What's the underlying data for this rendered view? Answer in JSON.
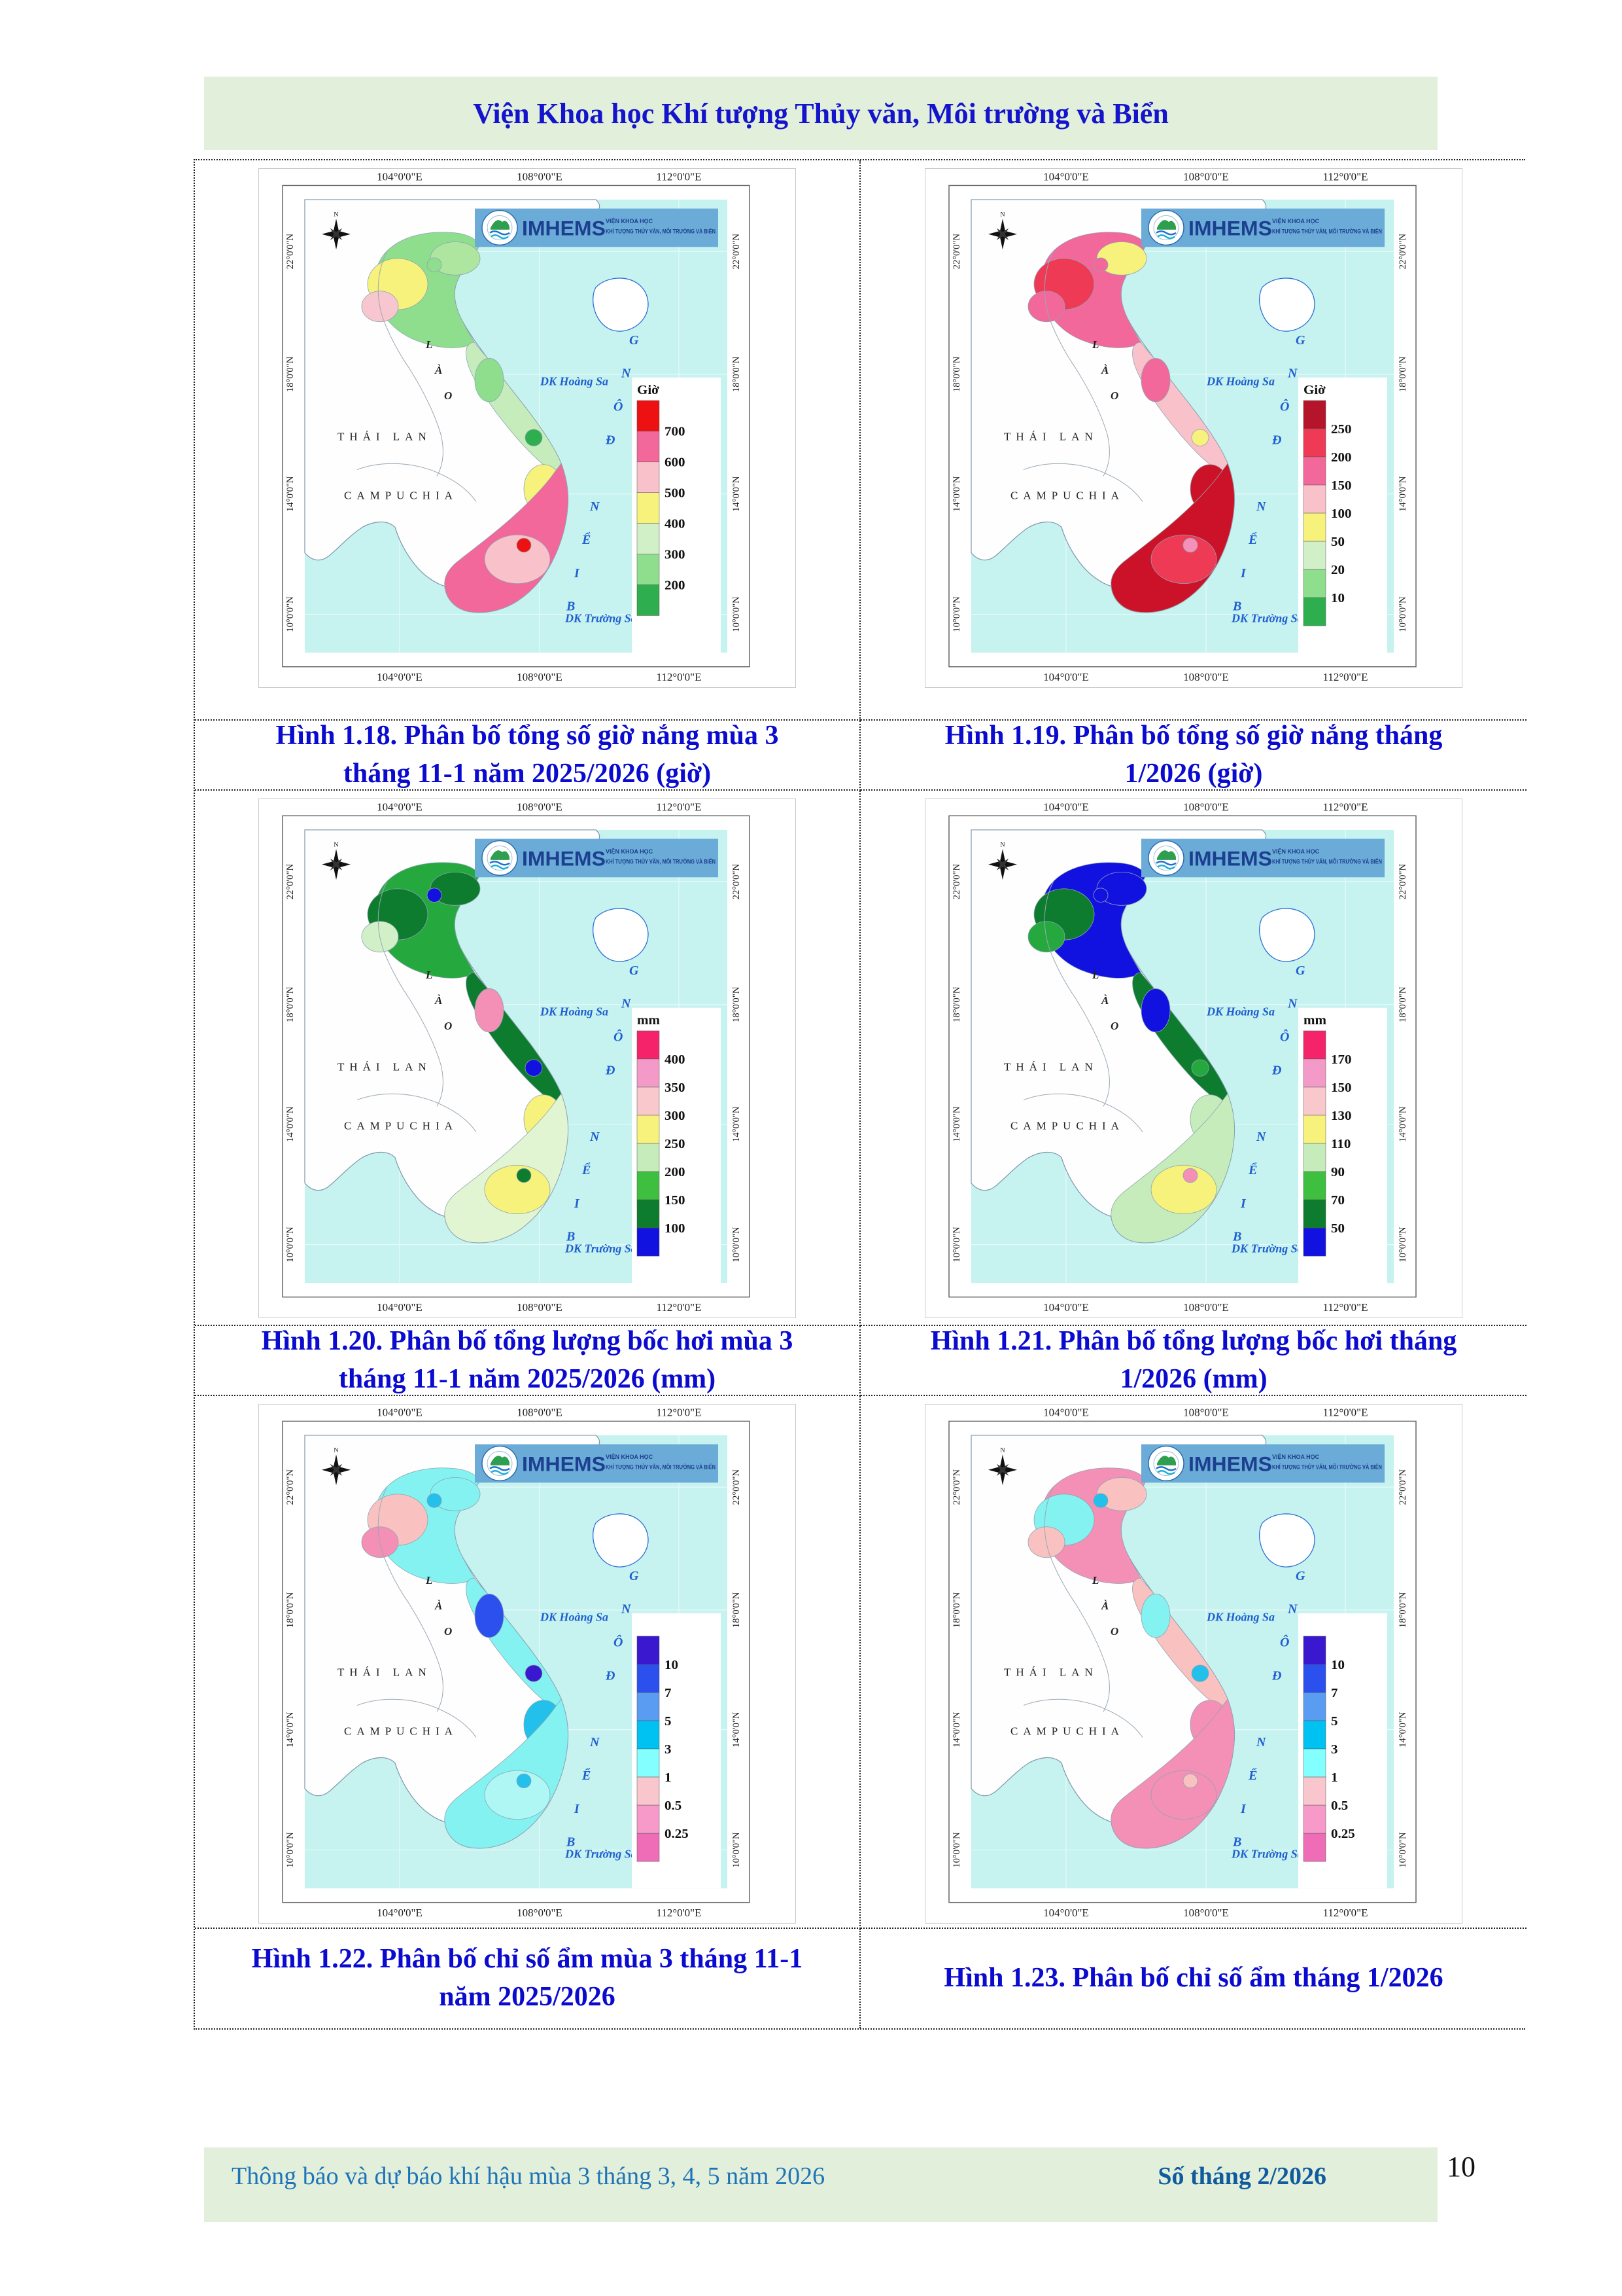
{
  "header": {
    "title": "Viện Khoa học Khí tượng Thủy văn, Môi trường và Biển"
  },
  "banner": {
    "acronym": "IMHEMS",
    "line1": "VIỆN KHOA HỌC",
    "line2": "KHÍ TƯỢNG THỦY VĂN, MÔI TRƯỜNG VÀ BIỂN",
    "bg": "#6aabd7"
  },
  "map_common": {
    "lon_labels": [
      "104°0'0\"E",
      "108°0'0\"E",
      "112°0'0\"E"
    ],
    "lat_labels": [
      "22°0'0\"N",
      "18°0'0\"N",
      "14°0'0\"N",
      "10°0'0\"N"
    ],
    "countries": {
      "laos": "LÀO",
      "thailand": "THÁI LAN",
      "cambodia": "CAMPUCHIA"
    },
    "sea_labels": {
      "hoang_sa": "DK Hoàng Sa",
      "truong_sa": "DK Trường Sa",
      "bien_dong": "BIỂN ĐÔNG"
    },
    "compass_n": "N",
    "sea_color": "#c6f2f0"
  },
  "figures": [
    {
      "caption": "Hình 1.18. Phân bố tổng số giờ nắng mùa 3 tháng 11-1 năm 2025/2026 (giờ)",
      "legend": {
        "title": "Giờ",
        "labels": [
          "700",
          "600",
          "500",
          "400",
          "300",
          "200"
        ],
        "colors": [
          "#ee1111",
          "#f2689a",
          "#f9c2ca",
          "#f6f27c",
          "#d2f0c8",
          "#8ede8e",
          "#2fae4f"
        ]
      },
      "map_colors": {
        "n1": "#8ede8e",
        "n2": "#f6f27c",
        "n3": "#f7c6ce",
        "n4": "#aee6a0",
        "nspot": "#8ede8e",
        "c1": "#c5ecba",
        "c2": "#8ede8e",
        "cspot": "#2fae4f",
        "h1": "#f6f27c",
        "s1": "#f2689a",
        "s2": "#f9c2ca",
        "sspot": "#ee1111"
      }
    },
    {
      "caption": "Hình 1.19. Phân bố tổng số giờ nắng tháng 1/2026 (giờ)",
      "legend": {
        "title": "Giờ",
        "labels": [
          "250",
          "200",
          "150",
          "100",
          "50",
          "20",
          "10"
        ],
        "colors": [
          "#b5152b",
          "#ee3a55",
          "#f2689a",
          "#f9c2ca",
          "#f6f27c",
          "#d2f0c8",
          "#8ede8e",
          "#2fae4f"
        ]
      },
      "map_colors": {
        "n1": "#f2689a",
        "n2": "#ee3a55",
        "n3": "#f2689a",
        "n4": "#f6f27c",
        "nspot": "#f2689a",
        "c1": "#f9c2ca",
        "c2": "#f2689a",
        "cspot": "#f6f27c",
        "h1": "#cc1228",
        "s1": "#cc1228",
        "s2": "#ee3a55",
        "sspot": "#f591b8"
      }
    },
    {
      "caption": "Hình 1.20. Phân bố tổng lượng bốc hơi mùa 3 tháng 11-1 năm 2025/2026 (mm)",
      "legend": {
        "title": "mm",
        "labels": [
          "400",
          "350",
          "300",
          "250",
          "200",
          "150",
          "100"
        ],
        "colors": [
          "#f5246a",
          "#f49ac8",
          "#f9c8cc",
          "#f6f27c",
          "#c5ecba",
          "#3fbf3f",
          "#0d7c2e",
          "#1212e0"
        ]
      },
      "map_colors": {
        "n1": "#25a93f",
        "n2": "#0d7c2e",
        "n3": "#d2f0c8",
        "n4": "#0d7c2e",
        "nspot": "#1212e0",
        "c1": "#0d7c2e",
        "c2": "#f48fb5",
        "cspot": "#1212e0",
        "h1": "#f6f27c",
        "s1": "#e2f5d2",
        "s2": "#f6f27c",
        "sspot": "#0d7c2e"
      }
    },
    {
      "caption": "Hình 1.21. Phân bố tổng lượng bốc hơi tháng 1/2026 (mm)",
      "legend": {
        "title": "mm",
        "labels": [
          "170",
          "150",
          "130",
          "110",
          "90",
          "70",
          "50"
        ],
        "colors": [
          "#f5246a",
          "#f49ac8",
          "#f9c8cc",
          "#f6f27c",
          "#c5ecba",
          "#3fbf3f",
          "#0d7c2e",
          "#1212e0"
        ]
      },
      "map_colors": {
        "n1": "#1212e0",
        "n2": "#0d7c2e",
        "n3": "#25a93f",
        "n4": "#1212e0",
        "nspot": "#1212e0",
        "c1": "#0d7c2e",
        "c2": "#1212e0",
        "cspot": "#25a93f",
        "h1": "#c5ecba",
        "s1": "#c5ecba",
        "s2": "#f6f27c",
        "sspot": "#f48fb5"
      }
    },
    {
      "caption": "Hình 1.22. Phân bố chỉ số ẩm mùa 3 tháng 11-1 năm 2025/2026",
      "legend": {
        "title": "",
        "labels": [
          "10",
          "7",
          "5",
          "3",
          "1",
          "0.5",
          "0.25"
        ],
        "colors": [
          "#3918cf",
          "#2b50ee",
          "#5a9cf2",
          "#00c2f2",
          "#84ffff",
          "#f9c6cd",
          "#f79ac9",
          "#ef6cb7"
        ]
      },
      "map_colors": {
        "n1": "#84f2f0",
        "n2": "#f9c2c0",
        "n3": "#f48fb5",
        "n4": "#84f2f0",
        "nspot": "#22c0ea",
        "c1": "#84f2f0",
        "c2": "#2b50ee",
        "cspot": "#3918cf",
        "h1": "#22c0ea",
        "s1": "#84f2f0",
        "s2": "#aef7f5",
        "sspot": "#22c0ea"
      }
    },
    {
      "caption": "Hình 1.23. Phân bố chỉ số ẩm tháng 1/2026",
      "legend": {
        "title": "",
        "labels": [
          "10",
          "7",
          "5",
          "3",
          "1",
          "0.5",
          "0.25"
        ],
        "colors": [
          "#3918cf",
          "#2b50ee",
          "#5a9cf2",
          "#00c2f2",
          "#84ffff",
          "#f9c6cd",
          "#f79ac9",
          "#ef6cb7"
        ]
      },
      "map_colors": {
        "n1": "#f48fb5",
        "n2": "#84f2f0",
        "n3": "#f9c2c0",
        "n4": "#f9c2c0",
        "nspot": "#22c0ea",
        "c1": "#f9c2c0",
        "c2": "#84f2f0",
        "cspot": "#22c0ea",
        "h1": "#f48fb5",
        "s1": "#f48fb5",
        "s2": "#f48fb5",
        "sspot": "#f9c2c0"
      }
    }
  ],
  "footer": {
    "left": "Thông báo và dự báo khí hậu mùa 3 tháng 3, 4, 5 năm 2026",
    "right": "Số tháng 2/2026",
    "page": "10"
  }
}
